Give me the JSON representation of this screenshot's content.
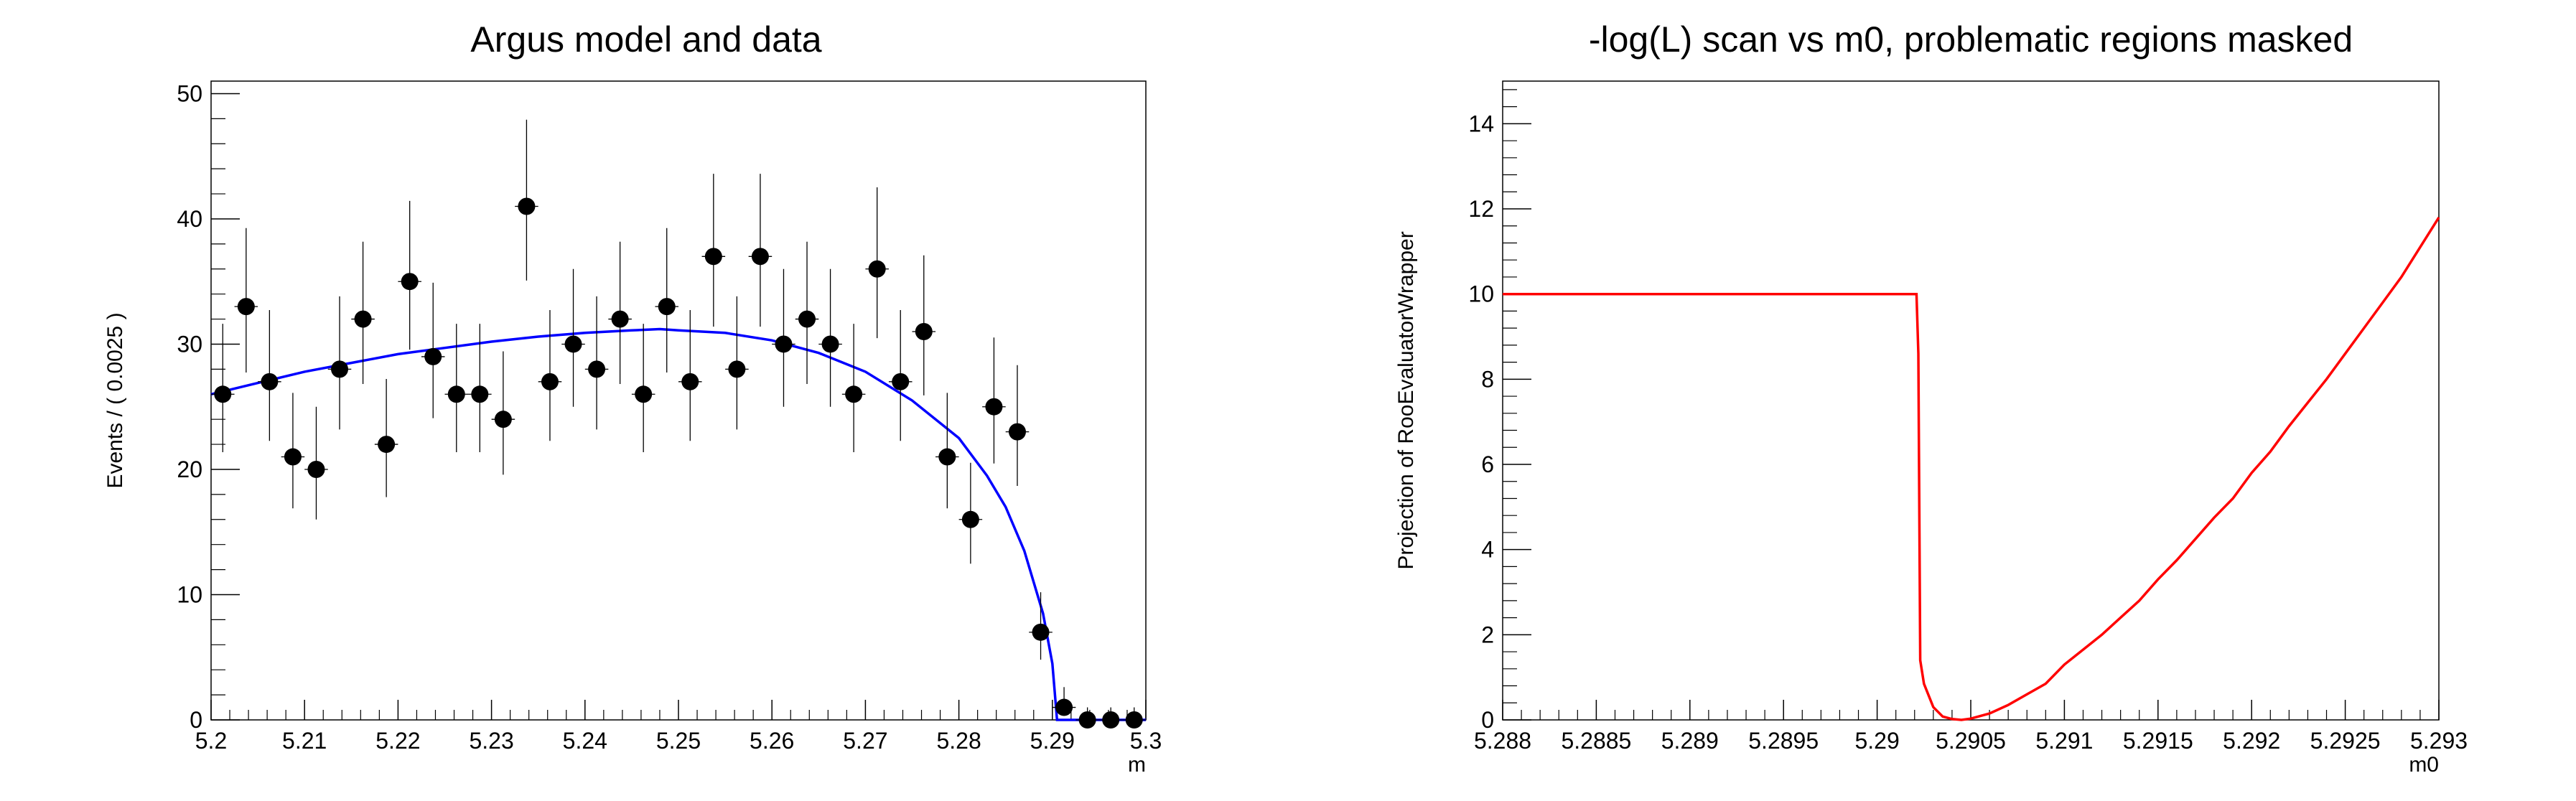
{
  "chart_data": [
    {
      "type": "scatter",
      "title": "Argus model and data",
      "xlabel": "m",
      "ylabel": "Events / ( 0.0025 )",
      "xlim": [
        5.2,
        5.3
      ],
      "ylim": [
        0,
        51
      ],
      "xticks": [
        "5.2",
        "5.21",
        "5.22",
        "5.23",
        "5.24",
        "5.25",
        "5.26",
        "5.27",
        "5.28",
        "5.29",
        "5.3"
      ],
      "yticks": [
        "0",
        "10",
        "20",
        "30",
        "40",
        "50"
      ],
      "bin_width": 0.0025,
      "data_values": [
        26,
        33,
        27,
        21,
        20,
        28,
        32,
        22,
        35,
        29,
        26,
        26,
        24,
        41,
        27,
        30,
        28,
        32,
        26,
        33,
        27,
        37,
        28,
        37,
        30,
        32,
        30,
        26,
        36,
        27,
        31,
        21,
        16,
        25,
        23,
        7,
        1,
        0,
        0,
        0
      ],
      "model_curve": [
        [
          5.2,
          26
        ],
        [
          5.205,
          26.9
        ],
        [
          5.21,
          27.8
        ],
        [
          5.215,
          28.5
        ],
        [
          5.22,
          29.2
        ],
        [
          5.225,
          29.7
        ],
        [
          5.23,
          30.2
        ],
        [
          5.235,
          30.6
        ],
        [
          5.24,
          30.9
        ],
        [
          5.245,
          31.1
        ],
        [
          5.248,
          31.2
        ],
        [
          5.25,
          31.1
        ],
        [
          5.255,
          30.9
        ],
        [
          5.26,
          30.3
        ],
        [
          5.265,
          29.3
        ],
        [
          5.27,
          27.8
        ],
        [
          5.275,
          25.5
        ],
        [
          5.28,
          22.5
        ],
        [
          5.283,
          19.5
        ],
        [
          5.285,
          17
        ],
        [
          5.287,
          13.5
        ],
        [
          5.289,
          8.5
        ],
        [
          5.29,
          4.5
        ],
        [
          5.2905,
          0
        ],
        [
          5.3,
          0
        ]
      ],
      "colors": {
        "data": "#000000",
        "model": "#0000ff"
      }
    },
    {
      "type": "line",
      "title": "-log(L) scan vs m0, problematic regions masked",
      "xlabel": "m0",
      "ylabel": "Projection of RooEvaluatorWrapper",
      "xlim": [
        5.288,
        5.293
      ],
      "ylim": [
        0,
        15
      ],
      "xticks": [
        "5.288",
        "5.2885",
        "5.289",
        "5.2895",
        "5.29",
        "5.2905",
        "5.291",
        "5.2915",
        "5.292",
        "5.2925",
        "5.293"
      ],
      "yticks": [
        "0",
        "2",
        "4",
        "6",
        "8",
        "10",
        "12",
        "14"
      ],
      "series": [
        {
          "values": [
            [
              5.288,
              10
            ],
            [
              5.29021,
              10
            ],
            [
              5.29022,
              8.6
            ],
            [
              5.29023,
              1.4
            ],
            [
              5.29025,
              0.85
            ],
            [
              5.2903,
              0.3
            ],
            [
              5.29035,
              0.08
            ],
            [
              5.2904,
              0.02
            ],
            [
              5.29045,
              0
            ],
            [
              5.2905,
              0.03
            ],
            [
              5.2906,
              0.15
            ],
            [
              5.2907,
              0.35
            ],
            [
              5.2908,
              0.6
            ],
            [
              5.2909,
              0.85
            ],
            [
              5.291,
              1.3
            ],
            [
              5.2911,
              1.65
            ],
            [
              5.2912,
              2.0
            ],
            [
              5.2913,
              2.4
            ],
            [
              5.2914,
              2.8
            ],
            [
              5.2915,
              3.3
            ],
            [
              5.2916,
              3.75
            ],
            [
              5.2917,
              4.25
            ],
            [
              5.2918,
              4.75
            ],
            [
              5.2919,
              5.2
            ],
            [
              5.292,
              5.8
            ],
            [
              5.2921,
              6.3
            ],
            [
              5.2922,
              6.9
            ],
            [
              5.2923,
              7.45
            ],
            [
              5.2924,
              8.0
            ],
            [
              5.2925,
              8.6
            ],
            [
              5.2926,
              9.2
            ],
            [
              5.2927,
              9.8
            ],
            [
              5.2928,
              10.4
            ],
            [
              5.2929,
              11.1
            ],
            [
              5.293,
              11.8
            ]
          ]
        }
      ],
      "colors": {
        "line": "#ff0000"
      }
    }
  ]
}
